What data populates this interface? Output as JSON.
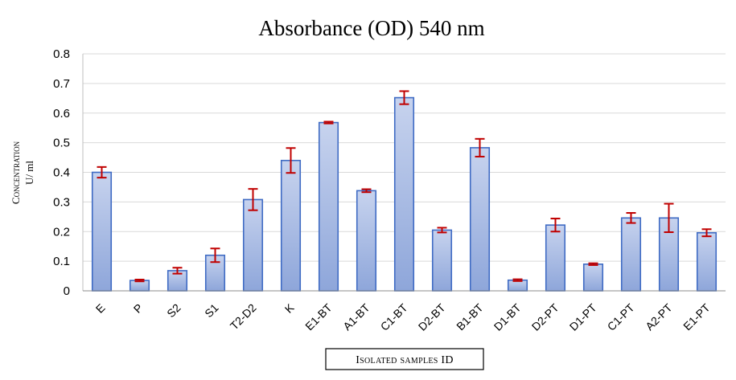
{
  "chart_data": {
    "type": "bar",
    "title": "Absorbance  (OD) 540 nm",
    "ylabel_line1": "Concentration",
    "ylabel_line2": "U/ ml",
    "xlabel": "Isolated samples ID",
    "ylim": [
      0,
      0.8
    ],
    "yticks": [
      "0",
      "0.1",
      "0.2",
      "0.3",
      "0.4",
      "0.5",
      "0.6",
      "0.7",
      "0.8"
    ],
    "grid": true,
    "categories": [
      "E",
      "P",
      "S2",
      "S1",
      "T2-D2",
      "K",
      "E1-BT",
      "A1-BT",
      "C1-BT",
      "D2-BT",
      "B1-BT",
      "D1-BT",
      "D2-PT",
      "D1-PT",
      "C1-PT",
      "A2-PT",
      "E1-PT"
    ],
    "values": [
      0.4,
      0.035,
      0.068,
      0.12,
      0.308,
      0.44,
      0.568,
      0.338,
      0.652,
      0.205,
      0.483,
      0.036,
      0.222,
      0.09,
      0.246,
      0.246,
      0.196
    ],
    "errors": [
      0.018,
      0.003,
      0.01,
      0.023,
      0.036,
      0.042,
      0.003,
      0.005,
      0.022,
      0.008,
      0.03,
      0.003,
      0.022,
      0.003,
      0.017,
      0.048,
      0.012
    ],
    "colors": {
      "bar_fill_top": "#c7d3ee",
      "bar_fill_bottom": "#8ea6da",
      "bar_stroke": "#3f6bc4",
      "error_bar": "#c00000",
      "grid": "#d9d9d9"
    }
  }
}
